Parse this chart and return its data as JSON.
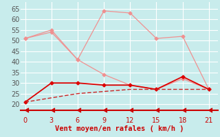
{
  "xlabel": "Vent moyen/en rafales ( km/h )",
  "x": [
    0,
    3,
    6,
    9,
    12,
    15,
    18,
    21
  ],
  "line_gust1": [
    51,
    54,
    41,
    64,
    63,
    51,
    52,
    27
  ],
  "line_gust2": [
    51,
    55,
    41,
    34,
    29,
    27,
    32,
    27
  ],
  "line_wind1": [
    21,
    30,
    30,
    29,
    29,
    27,
    33,
    27
  ],
  "line_wind2": [
    21,
    23,
    25,
    26,
    27,
    27,
    27,
    27
  ],
  "color_pink": "#f09090",
  "color_red": "#dd0000",
  "color_dashed": "#cc2222",
  "bg_color": "#c8ecec",
  "grid_color": "#b0d8d8",
  "xlabel_color": "#cc0000",
  "tick_color": "#cc0000",
  "ylim": [
    17,
    68
  ],
  "xlim": [
    -0.5,
    22
  ],
  "yticks": [
    20,
    25,
    30,
    35,
    40,
    45,
    50,
    55,
    60,
    65
  ],
  "xticks": [
    0,
    3,
    6,
    9,
    12,
    15,
    18,
    21
  ],
  "xlabel_fontsize": 7.5,
  "tick_fontsize": 7
}
